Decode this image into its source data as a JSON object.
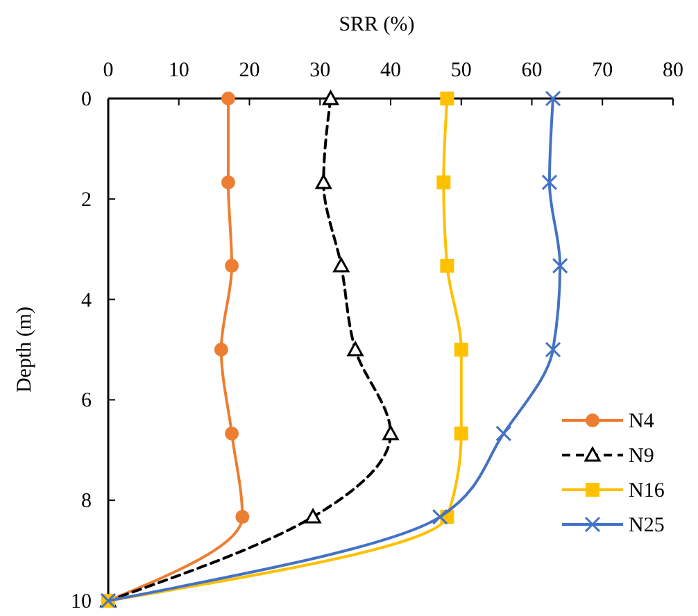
{
  "chart_data": {
    "type": "line",
    "xlabel": "SRR (%)",
    "ylabel": "Depth (m)",
    "xlim": [
      0,
      80
    ],
    "xticks": [
      0,
      10,
      20,
      30,
      40,
      50,
      60,
      70,
      80
    ],
    "ylim": [
      10,
      0
    ],
    "yticks": [
      0,
      2,
      4,
      6,
      8,
      10
    ],
    "legend": "bottom right",
    "grid": false,
    "series": [
      {
        "name": "N4",
        "color": "#ed7d31",
        "marker": "circle",
        "line_style": "solid",
        "x": [
          17,
          17,
          17.5,
          16,
          17.5,
          19,
          0
        ],
        "values": [
          0,
          1.67,
          3.33,
          5,
          6.67,
          8.33,
          10
        ]
      },
      {
        "name": "N9",
        "color": "#000000",
        "marker": "triangle",
        "line_style": "dashed",
        "x": [
          31.5,
          30.5,
          33,
          35,
          40,
          29,
          0
        ],
        "values": [
          0,
          1.67,
          3.33,
          5,
          6.67,
          8.33,
          10
        ]
      },
      {
        "name": "N16",
        "color": "#ffc000",
        "marker": "square",
        "line_style": "solid",
        "x": [
          48,
          47.5,
          48,
          50,
          50,
          48,
          0
        ],
        "values": [
          0,
          1.67,
          3.33,
          5,
          6.67,
          8.33,
          10
        ]
      },
      {
        "name": "N25",
        "color": "#4472c4",
        "marker": "cross",
        "line_style": "solid",
        "x": [
          63,
          62.5,
          64,
          63,
          56,
          47,
          0
        ],
        "values": [
          0,
          1.67,
          3.33,
          5,
          6.67,
          8.33,
          10
        ]
      }
    ]
  }
}
